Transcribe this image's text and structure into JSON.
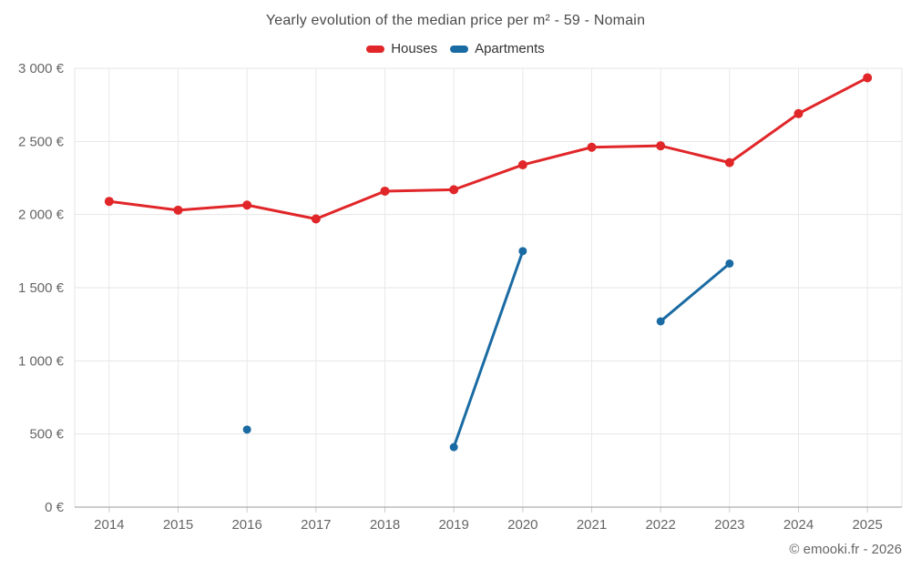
{
  "footer": "© emooki.fr - 2026",
  "chart_data": {
    "type": "line",
    "title": "Yearly evolution of the median price per m² - 59 - Nomain",
    "x": [
      2014,
      2015,
      2016,
      2017,
      2018,
      2019,
      2020,
      2021,
      2022,
      2023,
      2024,
      2025
    ],
    "series": [
      {
        "name": "Houses",
        "color": "#e12629",
        "values": [
          2090,
          2030,
          2065,
          1970,
          2160,
          2170,
          2340,
          2460,
          2470,
          2355,
          2690,
          2935
        ]
      },
      {
        "name": "Apartments",
        "color": "#1a6ba3",
        "values": [
          null,
          null,
          530,
          null,
          null,
          410,
          1750,
          null,
          1270,
          1665,
          null,
          null
        ]
      }
    ],
    "ylabel": "",
    "xlabel": "",
    "ylim": [
      0,
      3000
    ],
    "ytick_step": 500,
    "ytick_labels": [
      "0 €",
      "500 €",
      "1 000 €",
      "1 500 €",
      "2 000 €",
      "2 500 €",
      "3 000 €"
    ],
    "grid": true,
    "legend_position": "top",
    "currency": "€"
  }
}
